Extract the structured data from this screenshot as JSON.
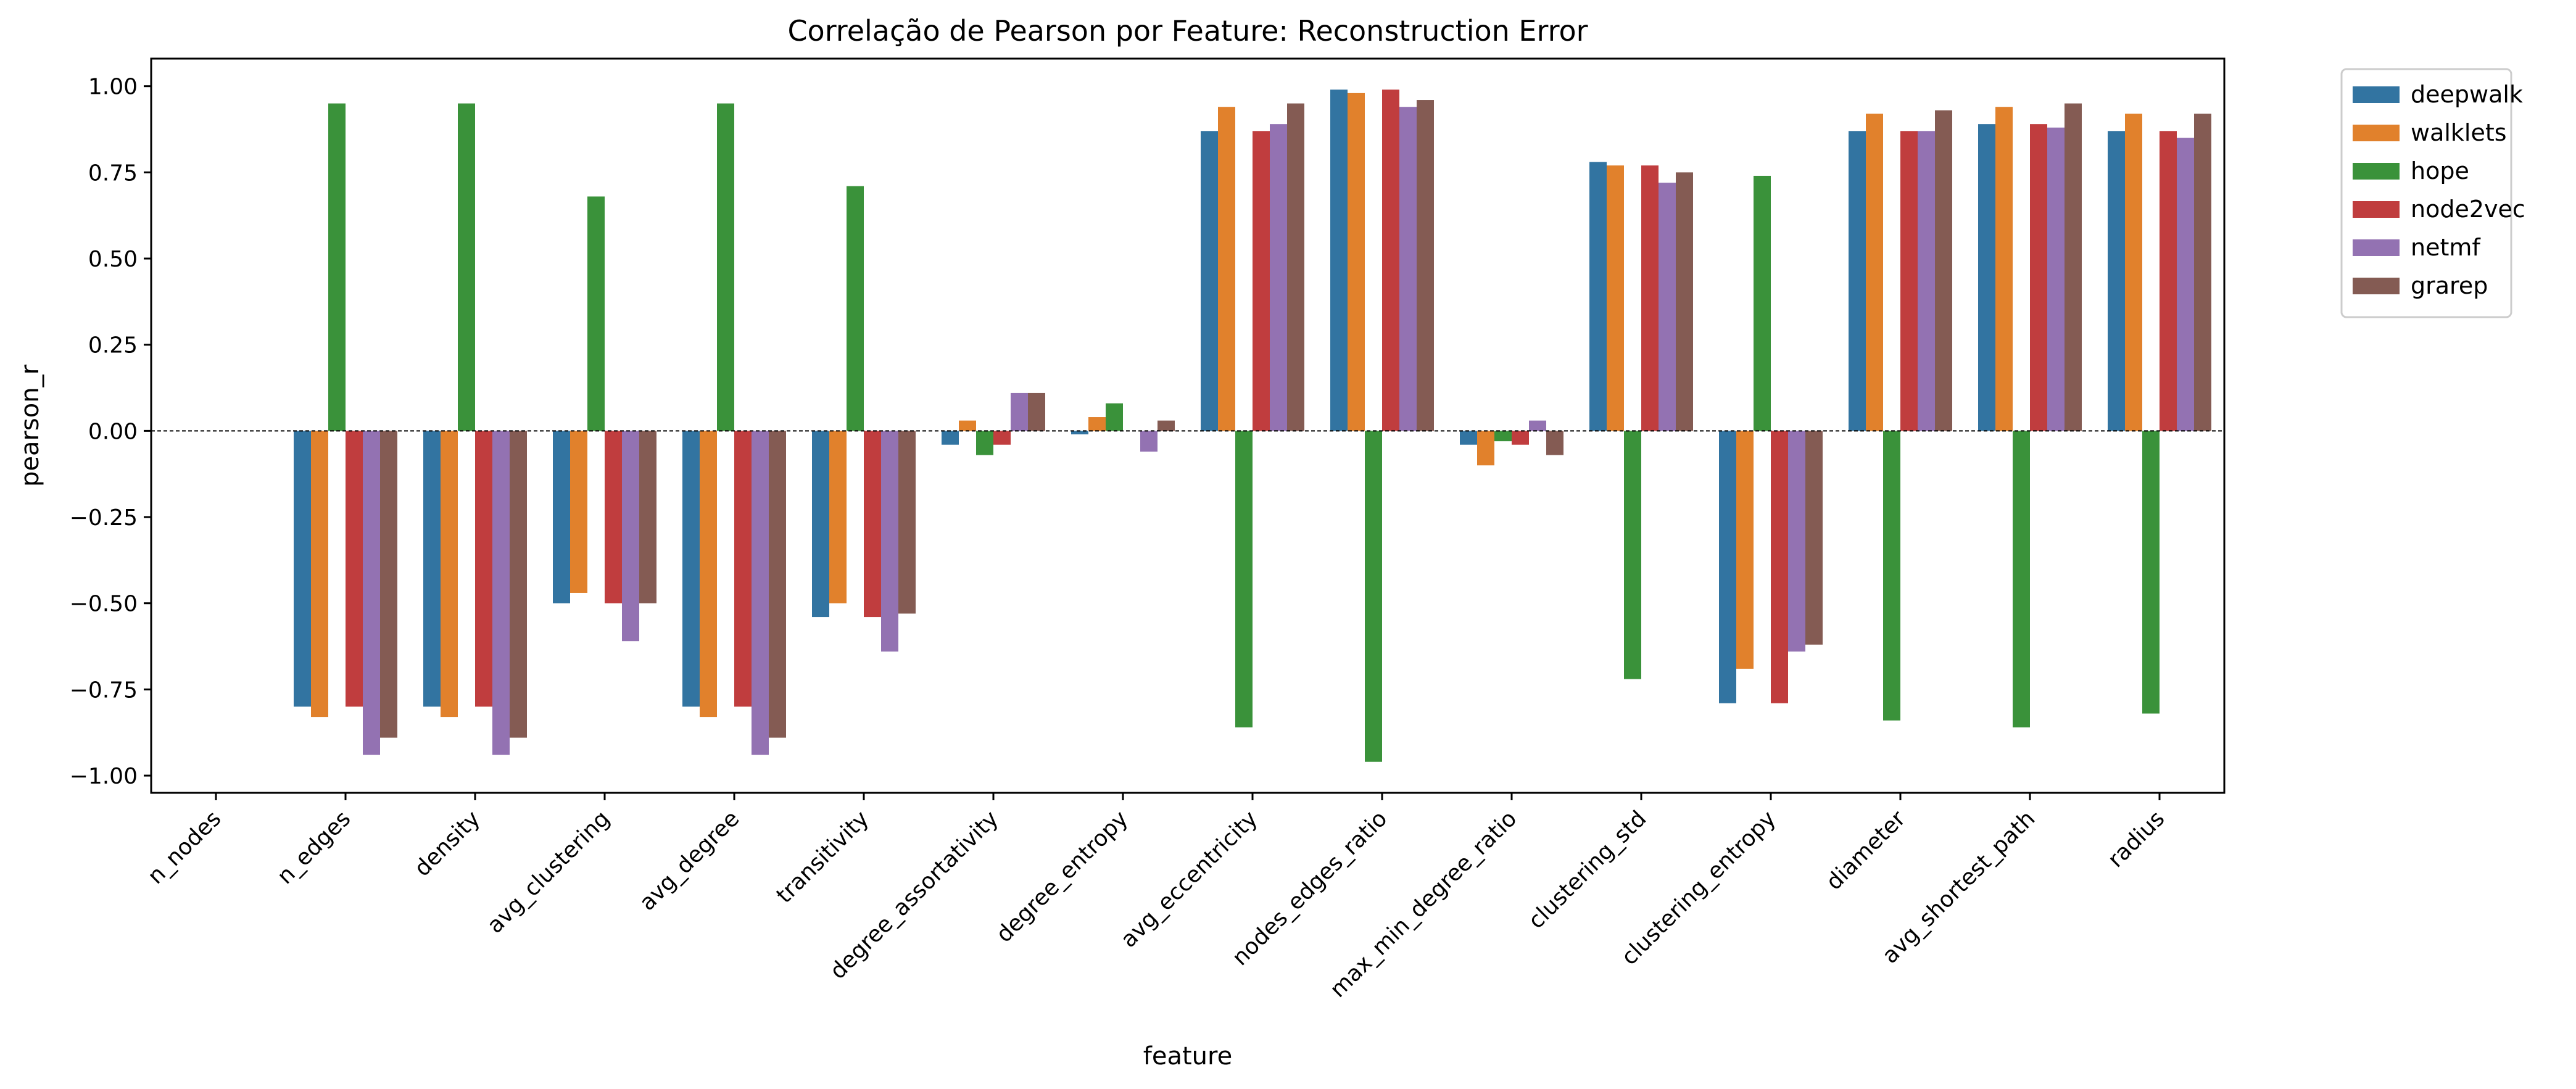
{
  "chart_data": {
    "type": "bar",
    "title": "Correlação de Pearson por Feature: Reconstruction Error",
    "xlabel": "feature",
    "ylabel": "pearson_r",
    "ylim": [
      -1.05,
      1.08
    ],
    "yticks": [
      "1.00",
      "0.75",
      "0.50",
      "0.25",
      "0.00",
      "−0.25",
      "−0.50",
      "−0.75",
      "−1.00"
    ],
    "ytick_values": [
      1.0,
      0.75,
      0.5,
      0.25,
      0.0,
      -0.25,
      -0.5,
      -0.75,
      -1.0
    ],
    "grid": false,
    "zero_line": "dashed",
    "legend_position": "outside-top-right",
    "categories": [
      "n_nodes",
      "n_edges",
      "density",
      "avg_clustering",
      "avg_degree",
      "transitivity",
      "degree_assortativity",
      "degree_entropy",
      "avg_eccentricity",
      "nodes_edges_ratio",
      "max_min_degree_ratio",
      "clustering_std",
      "clustering_entropy",
      "diameter",
      "avg_shortest_path",
      "radius"
    ],
    "series": [
      {
        "name": "deepwalk",
        "color": "#3274a1",
        "values": [
          null,
          -0.8,
          -0.8,
          -0.5,
          -0.8,
          -0.54,
          -0.04,
          -0.01,
          0.87,
          0.99,
          -0.04,
          0.78,
          -0.79,
          0.87,
          0.89,
          0.87
        ]
      },
      {
        "name": "walklets",
        "color": "#e1812c",
        "values": [
          null,
          -0.83,
          -0.83,
          -0.47,
          -0.83,
          -0.5,
          0.03,
          0.04,
          0.94,
          0.98,
          -0.1,
          0.77,
          -0.69,
          0.92,
          0.94,
          0.92
        ]
      },
      {
        "name": "hope",
        "color": "#3a923a",
        "values": [
          null,
          0.95,
          0.95,
          0.68,
          0.95,
          0.71,
          -0.07,
          0.08,
          -0.86,
          -0.96,
          -0.03,
          -0.72,
          0.74,
          -0.84,
          -0.86,
          -0.82
        ]
      },
      {
        "name": "node2vec",
        "color": "#c03d3e",
        "values": [
          null,
          -0.8,
          -0.8,
          -0.5,
          -0.8,
          -0.54,
          -0.04,
          0.0,
          0.87,
          0.99,
          -0.04,
          0.77,
          -0.79,
          0.87,
          0.89,
          0.87
        ]
      },
      {
        "name": "netmf",
        "color": "#9372b2",
        "values": [
          null,
          -0.94,
          -0.94,
          -0.61,
          -0.94,
          -0.64,
          0.11,
          -0.06,
          0.89,
          0.94,
          0.03,
          0.72,
          -0.64,
          0.87,
          0.88,
          0.85
        ]
      },
      {
        "name": "grarep",
        "color": "#845b53",
        "values": [
          null,
          -0.89,
          -0.89,
          -0.5,
          -0.89,
          -0.53,
          0.11,
          0.03,
          0.95,
          0.96,
          -0.07,
          0.75,
          -0.62,
          0.93,
          0.95,
          0.92
        ]
      }
    ]
  }
}
